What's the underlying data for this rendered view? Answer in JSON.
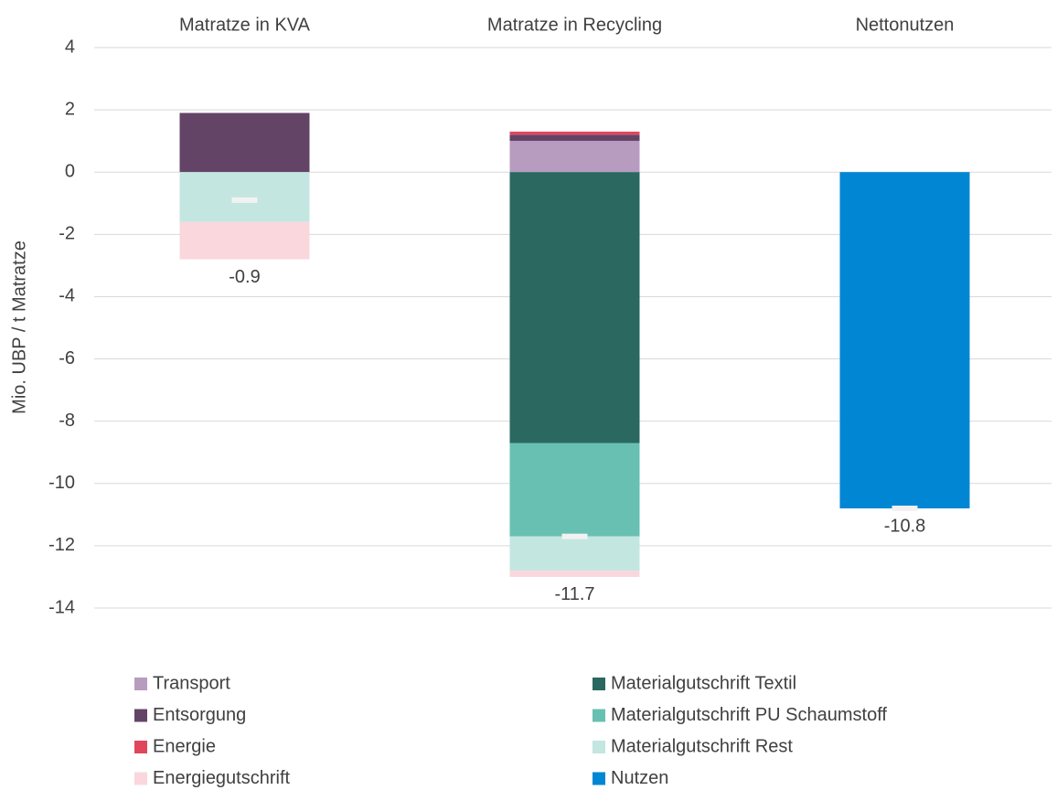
{
  "chart_data": {
    "type": "stacked_bar",
    "y_label": "Mio. UBP / t Matratze",
    "categories": [
      "Matratze in KVA",
      "Matratze in Recycling",
      "Nettonutzen"
    ],
    "series": [
      {
        "name": "Transport",
        "color": "#b89cc0",
        "values": [
          0,
          1.0,
          0
        ]
      },
      {
        "name": "Entsorgung",
        "color": "#634467",
        "values": [
          1.9,
          0.2,
          0
        ]
      },
      {
        "name": "Energie",
        "color": "#e0475c",
        "values": [
          0,
          0.1,
          0
        ]
      },
      {
        "name": "Energiegutschrift",
        "color": "#f9d7dc",
        "values": [
          -1.2,
          -0.2,
          0
        ]
      },
      {
        "name": "Materialgutschrift Textil",
        "color": "#2a6860",
        "values": [
          0,
          -8.7,
          0
        ]
      },
      {
        "name": "Materialgutschrift PU Schaumstoff",
        "color": "#68c0b2",
        "values": [
          0,
          -3.0,
          0
        ]
      },
      {
        "name": "Materialgutschrift Rest",
        "color": "#c3e6e1",
        "values": [
          -1.6,
          -1.1,
          0
        ]
      },
      {
        "name": "Nutzen",
        "color": "#0086d3",
        "values": [
          0,
          0,
          -10.8
        ]
      }
    ],
    "totals": [
      -0.9,
      -11.7,
      -10.8
    ],
    "ylim": [
      -14,
      4
    ],
    "yticks": [
      4,
      2,
      0,
      -2,
      -4,
      -6,
      -8,
      -10,
      -12,
      -14
    ],
    "grid": true
  }
}
